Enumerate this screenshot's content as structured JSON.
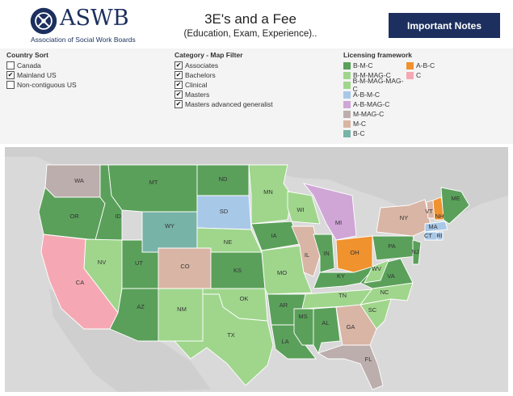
{
  "header": {
    "logo_text": "ASWB",
    "logo_subtitle": "Association of Social Work Boards",
    "title": "3E's and a Fee",
    "subtitle": "(Education, Exam, Experience)..",
    "notes_button": "Important Notes"
  },
  "country_sort": {
    "title": "Country Sort",
    "items": [
      {
        "label": "Canada",
        "checked": false
      },
      {
        "label": "Mainland US",
        "checked": true
      },
      {
        "label": "Non-contiguous US",
        "checked": false
      }
    ]
  },
  "category": {
    "title": "Category - Map Filter",
    "items": [
      {
        "label": "Associates",
        "checked": true
      },
      {
        "label": "Bachelors",
        "checked": true
      },
      {
        "label": "Clinical",
        "checked": true
      },
      {
        "label": "Masters",
        "checked": true
      },
      {
        "label": "Masters advanced generalist",
        "checked": true
      }
    ]
  },
  "licensing": {
    "title": "Licensing framework",
    "col1": [
      {
        "label": "B-M-C",
        "color": "#5aa05a"
      },
      {
        "label": "B-M-MAG-C",
        "color": "#9fd68c"
      },
      {
        "label": "B-M-MAG-MAG-C",
        "color": "#9fd68c"
      },
      {
        "label": "A-B-M-C",
        "color": "#a8c8e8"
      },
      {
        "label": "A-B-MAG-C",
        "color": "#cfa6d6"
      },
      {
        "label": "M-MAG-C",
        "color": "#bdaeae"
      },
      {
        "label": "M-C",
        "color": "#d9b5a5"
      },
      {
        "label": "B-C",
        "color": "#78b3a8"
      }
    ],
    "col2": [
      {
        "label": "A-B-C",
        "color": "#f0922e"
      },
      {
        "label": "C",
        "color": "#f5a8b3"
      }
    ]
  },
  "map": {
    "colors": {
      "bmc": "#5aa05a",
      "bmmagc": "#9fd68c",
      "abmc": "#a8c8e8",
      "abmagc": "#cfa6d6",
      "mmagc": "#bdaeae",
      "mc": "#d9b5a5",
      "bc": "#78b3a8",
      "abc": "#f0922e",
      "c": "#f5a8b3",
      "background": "#d9d9d9",
      "land": "#cfcfcf"
    },
    "state_labels": {
      "WA": "WA",
      "OR": "OR",
      "CA": "CA",
      "ID": "ID",
      "NV": "NV",
      "MT": "MT",
      "WY": "WY",
      "UT": "UT",
      "AZ": "AZ",
      "CO": "CO",
      "NM": "NM",
      "ND": "ND",
      "SD": "SD",
      "NE": "NE",
      "KS": "KS",
      "OK": "OK",
      "TX": "TX",
      "MN": "MN",
      "IA": "IA",
      "MO": "MO",
      "AR": "AR",
      "LA": "LA",
      "WI": "WI",
      "IL": "IL",
      "MI": "MI",
      "IN": "IN",
      "OH": "OH",
      "KY": "KY",
      "TN": "TN",
      "MS": "MS",
      "AL": "AL",
      "GA": "GA",
      "FL": "FL",
      "SC": "SC",
      "NC": "NC",
      "VA": "VA",
      "WV": "WV",
      "PA": "PA",
      "NY": "NY",
      "VT": "VT",
      "NH": "NH",
      "ME": "ME",
      "MA": "MA",
      "CT": "CT",
      "RI": "RI",
      "NJ": "NJ"
    }
  }
}
